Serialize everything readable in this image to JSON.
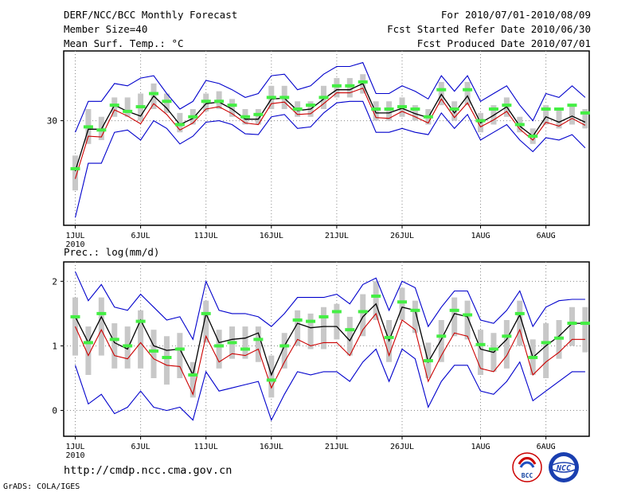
{
  "header": {
    "title": "DERF/NCC/BCC Monthly Forecast",
    "member_size": "Member Size=40",
    "variable": "Mean Surf. Temp.: °C",
    "period": "For 2010/07/01-2010/08/09",
    "refer_date": "Fcst Started Refer Date 2010/06/30",
    "produced_date": "Fcst Produced Date 2010/07/01"
  },
  "footer": {
    "url": "http://cmdp.ncc.cma.gov.cn",
    "credit": "GrADS: COLA/IGES",
    "logo_left_text": "BCC",
    "logo_right_text": "NCC"
  },
  "colors": {
    "ensemble_mean": "#000000",
    "median": "#cc0000",
    "envelope": "#0000cc",
    "member_marker": "#44ee44",
    "box": "#c8c8c8"
  },
  "chart_data": [
    {
      "type": "line",
      "title": "Mean Surf. Temp.: °C",
      "xlabel": "",
      "ylabel": "°C",
      "ylim": [
        16.5,
        39
      ],
      "grid": true,
      "x_ticks": [
        "1JUL",
        "6JUL",
        "11JUL",
        "16JUL",
        "21JUL",
        "26JUL",
        "1AUG",
        "6AUG"
      ],
      "x_tick_days": [
        1,
        6,
        11,
        16,
        21,
        26,
        32,
        37
      ],
      "x_year_label": "2010",
      "y_ticks": [
        30
      ],
      "days": [
        1,
        2,
        3,
        4,
        5,
        6,
        7,
        8,
        9,
        10,
        11,
        12,
        13,
        14,
        15,
        16,
        17,
        18,
        19,
        20,
        21,
        22,
        23,
        24,
        25,
        26,
        27,
        28,
        29,
        30,
        31,
        32,
        33,
        34,
        35,
        36,
        37,
        38,
        39,
        40
      ],
      "series": [
        {
          "name": "mean",
          "values": [
            23.5,
            28.9,
            28.9,
            32.0,
            31.2,
            30.6,
            33.2,
            31.6,
            29.5,
            30.3,
            32.2,
            32.4,
            31.5,
            30.2,
            30.2,
            32.8,
            32.9,
            31.3,
            31.5,
            32.8,
            34.0,
            34.0,
            34.8,
            31.0,
            31.0,
            31.6,
            30.9,
            30.4,
            33.4,
            31.0,
            33.2,
            29.7,
            30.7,
            31.8,
            29.3,
            28.0,
            30.5,
            29.8,
            30.6,
            29.8
          ]
        },
        {
          "name": "median",
          "values": [
            22.5,
            28.0,
            27.9,
            31.4,
            30.6,
            29.6,
            32.2,
            30.8,
            28.8,
            29.7,
            31.5,
            31.8,
            30.9,
            29.7,
            29.5,
            32.2,
            32.4,
            30.8,
            30.9,
            32.2,
            33.6,
            33.6,
            34.2,
            30.4,
            30.3,
            31.2,
            30.5,
            29.7,
            32.8,
            30.4,
            32.3,
            29.2,
            30.1,
            31.2,
            28.9,
            27.5,
            29.8,
            29.3,
            30.3,
            29.4
          ]
        },
        {
          "name": "max",
          "values": [
            28.5,
            32.5,
            32.5,
            34.8,
            34.5,
            35.5,
            35.8,
            33.5,
            31.5,
            32.5,
            35.2,
            34.8,
            34.0,
            33.0,
            33.5,
            35.8,
            36.0,
            34.0,
            34.5,
            36.0,
            37.0,
            37.0,
            37.5,
            33.5,
            33.5,
            34.5,
            33.8,
            32.8,
            35.8,
            33.8,
            35.8,
            32.5,
            33.5,
            34.5,
            32.0,
            30.0,
            33.5,
            33.0,
            34.5,
            33.0
          ]
        },
        {
          "name": "min",
          "values": [
            17.5,
            24.5,
            24.5,
            28.5,
            28.8,
            27.5,
            30.0,
            29.0,
            27.0,
            28.0,
            29.8,
            30.0,
            29.5,
            28.3,
            28.2,
            30.5,
            30.8,
            29.0,
            29.2,
            31.0,
            32.3,
            32.5,
            32.5,
            28.5,
            28.5,
            29.0,
            28.5,
            28.2,
            31.0,
            29.0,
            30.8,
            27.5,
            28.5,
            29.5,
            27.5,
            26.0,
            27.8,
            27.5,
            28.2,
            26.5
          ]
        }
      ],
      "member_markers": [
        23.8,
        29.2,
        28.8,
        32.0,
        31.2,
        31.8,
        33.5,
        32.5,
        29.5,
        30.5,
        32.5,
        32.5,
        32.0,
        30.5,
        30.8,
        33.0,
        33.0,
        31.5,
        32.0,
        33.0,
        34.5,
        34.5,
        35.0,
        31.5,
        31.5,
        31.8,
        31.5,
        30.5,
        34.0,
        31.5,
        34.0,
        30.0,
        31.5,
        32.0,
        29.5,
        28.0,
        31.5,
        31.5,
        32.0,
        31.0
      ],
      "box_low": [
        21.0,
        27.0,
        27.5,
        30.5,
        30.5,
        30.0,
        31.5,
        31.0,
        28.5,
        29.5,
        31.2,
        31.5,
        30.5,
        29.5,
        29.5,
        31.5,
        31.5,
        30.5,
        30.5,
        31.5,
        33.0,
        33.0,
        33.5,
        30.0,
        30.0,
        30.5,
        30.0,
        29.5,
        32.0,
        30.0,
        32.0,
        28.5,
        29.5,
        30.5,
        28.5,
        27.0,
        29.5,
        29.0,
        29.5,
        29.0
      ],
      "box_high": [
        25.5,
        31.5,
        30.5,
        33.0,
        33.0,
        33.5,
        34.8,
        33.5,
        31.0,
        31.5,
        33.5,
        33.8,
        32.8,
        31.5,
        31.5,
        34.5,
        34.5,
        32.5,
        32.5,
        34.5,
        35.5,
        35.5,
        36.0,
        32.5,
        32.5,
        33.0,
        32.0,
        31.5,
        35.0,
        32.5,
        35.0,
        31.0,
        32.0,
        33.0,
        30.5,
        29.0,
        32.0,
        31.5,
        32.0,
        31.5
      ]
    },
    {
      "type": "line",
      "title": "Prec.: log(mm/d)",
      "xlabel": "",
      "ylabel": "log(mm/d)",
      "ylim": [
        -0.4,
        2.3
      ],
      "grid": true,
      "x_ticks": [
        "1JUL",
        "6JUL",
        "11JUL",
        "16JUL",
        "21JUL",
        "26JUL",
        "1AUG",
        "6AUG"
      ],
      "x_tick_days": [
        1,
        6,
        11,
        16,
        21,
        26,
        32,
        37
      ],
      "x_year_label": "2010",
      "y_ticks": [
        0,
        1,
        2
      ],
      "days": [
        1,
        2,
        3,
        4,
        5,
        6,
        7,
        8,
        9,
        10,
        11,
        12,
        13,
        14,
        15,
        16,
        17,
        18,
        19,
        20,
        21,
        22,
        23,
        24,
        25,
        26,
        27,
        28,
        29,
        30,
        31,
        32,
        33,
        34,
        35,
        36,
        37,
        38,
        39,
        40
      ],
      "series": [
        {
          "name": "mean",
          "values": [
            1.45,
            1.05,
            1.45,
            1.05,
            0.95,
            1.4,
            1.0,
            0.93,
            0.95,
            0.55,
            1.5,
            1.05,
            1.1,
            1.12,
            1.2,
            0.55,
            1.0,
            1.35,
            1.28,
            1.3,
            1.3,
            1.08,
            1.45,
            1.65,
            1.08,
            1.6,
            1.55,
            0.75,
            1.1,
            1.5,
            1.45,
            0.95,
            0.9,
            1.1,
            1.48,
            0.82,
            1.0,
            1.15,
            1.35,
            1.35
          ]
        },
        {
          "name": "median",
          "values": [
            1.3,
            0.85,
            1.25,
            0.85,
            0.8,
            1.05,
            0.8,
            0.7,
            0.68,
            0.25,
            1.15,
            0.75,
            0.88,
            0.85,
            0.95,
            0.35,
            0.75,
            1.1,
            1.0,
            1.05,
            1.05,
            0.85,
            1.25,
            1.5,
            0.85,
            1.4,
            1.25,
            0.45,
            0.85,
            1.2,
            1.15,
            0.65,
            0.6,
            0.85,
            1.25,
            0.55,
            0.75,
            0.9,
            1.1,
            1.1
          ]
        },
        {
          "name": "max",
          "values": [
            2.15,
            1.7,
            1.95,
            1.6,
            1.55,
            1.8,
            1.6,
            1.4,
            1.45,
            1.1,
            2.0,
            1.55,
            1.5,
            1.5,
            1.45,
            1.3,
            1.5,
            1.75,
            1.75,
            1.75,
            1.8,
            1.65,
            1.95,
            2.05,
            1.55,
            2.0,
            1.9,
            1.3,
            1.6,
            1.85,
            1.85,
            1.4,
            1.35,
            1.55,
            1.85,
            1.3,
            1.6,
            1.7,
            1.72,
            1.72
          ]
        },
        {
          "name": "min",
          "values": [
            0.7,
            0.1,
            0.25,
            -0.05,
            0.05,
            0.3,
            0.05,
            0.0,
            0.05,
            -0.15,
            0.6,
            0.3,
            0.35,
            0.4,
            0.45,
            -0.15,
            0.25,
            0.6,
            0.55,
            0.6,
            0.6,
            0.45,
            0.75,
            0.95,
            0.45,
            0.95,
            0.8,
            0.05,
            0.45,
            0.7,
            0.7,
            0.3,
            0.25,
            0.45,
            0.75,
            0.15,
            0.3,
            0.45,
            0.6,
            0.6
          ]
        }
      ],
      "member_markers": [
        1.45,
        1.05,
        1.5,
        1.1,
        1.0,
        1.38,
        0.92,
        0.82,
        0.95,
        0.55,
        1.5,
        1.0,
        1.05,
        0.95,
        1.1,
        0.47,
        1.0,
        1.4,
        1.38,
        1.45,
        1.53,
        1.25,
        1.53,
        1.77,
        1.13,
        1.68,
        1.55,
        0.77,
        1.15,
        1.55,
        1.48,
        1.02,
        0.95,
        1.15,
        1.5,
        0.82,
        1.05,
        1.12,
        1.35,
        1.35
      ],
      "box_low": [
        0.85,
        0.55,
        0.85,
        0.65,
        0.65,
        0.65,
        0.5,
        0.4,
        0.5,
        0.2,
        1.05,
        0.65,
        0.8,
        0.8,
        0.75,
        0.2,
        0.65,
        1.0,
        0.95,
        0.95,
        1.1,
        0.85,
        1.15,
        1.4,
        0.75,
        1.4,
        1.2,
        0.5,
        0.75,
        1.15,
        1.1,
        0.55,
        0.6,
        0.65,
        1.0,
        0.55,
        0.5,
        0.8,
        1.0,
        0.9
      ],
      "box_high": [
        1.75,
        1.3,
        1.75,
        1.35,
        1.3,
        1.55,
        1.25,
        1.15,
        1.2,
        0.75,
        1.7,
        1.25,
        1.3,
        1.3,
        1.3,
        0.85,
        1.2,
        1.55,
        1.5,
        1.6,
        1.65,
        1.45,
        1.8,
        2.0,
        1.4,
        1.9,
        1.7,
        1.05,
        1.4,
        1.75,
        1.7,
        1.25,
        1.2,
        1.4,
        1.7,
        1.1,
        1.35,
        1.4,
        1.6,
        1.6
      ]
    }
  ]
}
